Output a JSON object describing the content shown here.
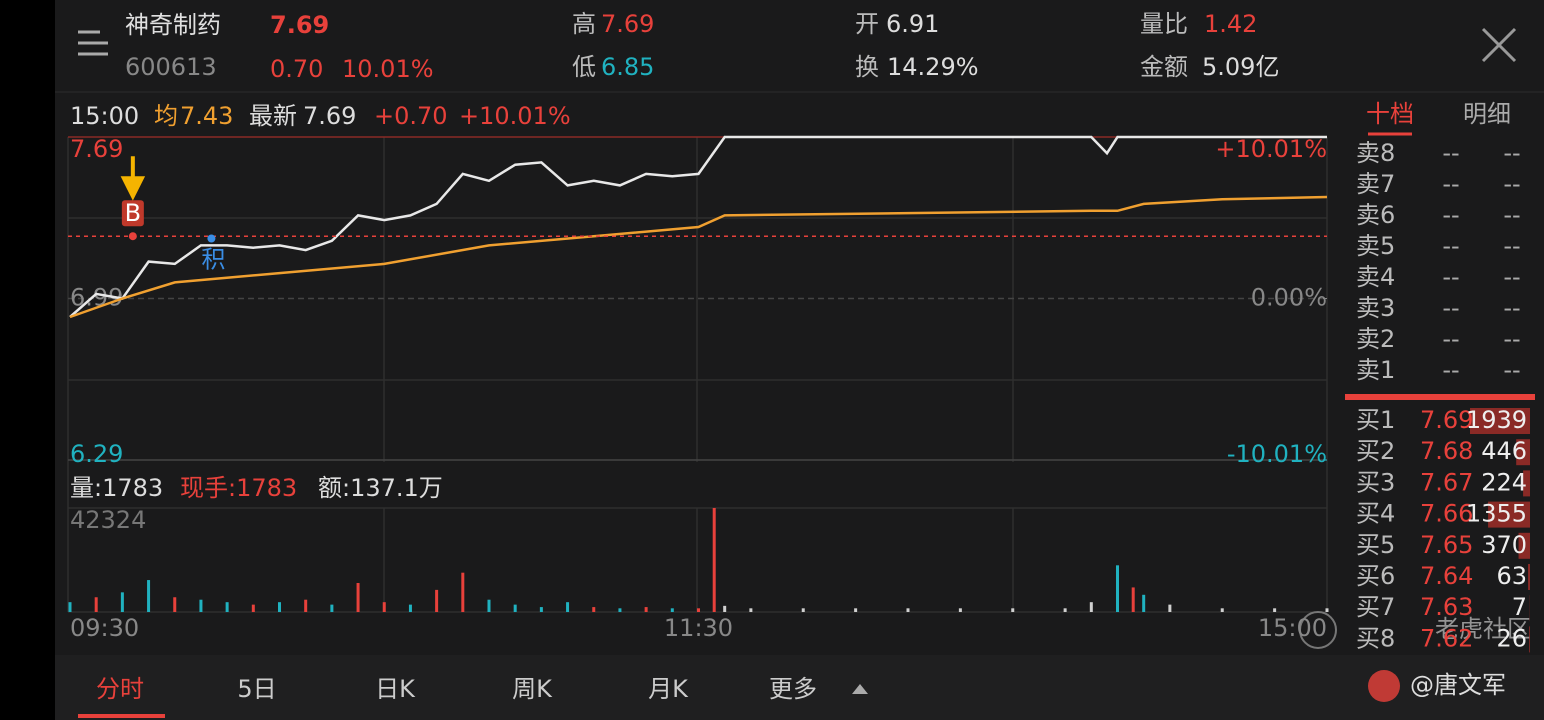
{
  "header": {
    "name": "神奇制药",
    "code": "600613",
    "price": "7.69",
    "change": "0.70",
    "change_pct": "10.01%",
    "high_label": "高",
    "high": "7.69",
    "low_label": "低",
    "low": "6.85",
    "open_label": "开",
    "open": "6.91",
    "turnover_label": "换",
    "turnover": "14.29%",
    "ratio_label": "量比",
    "ratio": "1.42",
    "amount_label": "金额",
    "amount": "5.09亿"
  },
  "info_bar": {
    "time": "15:00",
    "avg_label": "均",
    "avg": "7.43",
    "latest_label": "最新",
    "latest": "7.69",
    "change": "+0.70",
    "change_pct": "+10.01%"
  },
  "volume_bar": {
    "volume": "量:1783",
    "hand": "现手:1783",
    "amount": "额:137.1万"
  },
  "chart_data": [
    {
      "type": "line",
      "ylim": [
        6.29,
        7.69
      ],
      "yticks": [
        7.69,
        6.99,
        6.29
      ],
      "y2lim": [
        -10.01,
        10.01
      ],
      "y2ticks": [
        {
          "value": 10.01,
          "label": "+10.01%"
        },
        {
          "value": 0,
          "label": "0.00%"
        },
        {
          "value": -10.01,
          "label": "-10.01%"
        }
      ],
      "xlim": [
        0,
        240
      ],
      "series": [
        {
          "color": "#e8e8e8",
          "x": [
            0,
            5,
            10,
            15,
            20,
            25,
            30,
            35,
            40,
            45,
            50,
            55,
            60,
            65,
            70,
            75,
            80,
            85,
            90,
            95,
            100,
            105,
            110,
            115,
            120,
            125,
            195,
            198,
            200,
            240
          ],
          "values": [
            6.91,
            7.01,
            6.99,
            7.15,
            7.14,
            7.22,
            7.22,
            7.21,
            7.22,
            7.2,
            7.24,
            7.35,
            7.33,
            7.35,
            7.4,
            7.53,
            7.5,
            7.57,
            7.58,
            7.48,
            7.5,
            7.48,
            7.53,
            7.52,
            7.53,
            7.69,
            7.69,
            7.62,
            7.69,
            7.69
          ]
        },
        {
          "color": "#f0a030",
          "x": [
            0,
            10,
            20,
            40,
            60,
            80,
            100,
            120,
            125,
            160,
            195,
            200,
            205,
            220,
            240
          ],
          "values": [
            6.91,
            6.99,
            7.06,
            7.1,
            7.14,
            7.22,
            7.26,
            7.3,
            7.35,
            7.36,
            7.37,
            7.37,
            7.4,
            7.42,
            7.43
          ]
        }
      ],
      "annotations": [
        {
          "label": "B",
          "x": 12,
          "y": 7.26
        },
        {
          "label": "积",
          "x": 27,
          "y": 7.25
        }
      ]
    },
    {
      "type": "bar",
      "ylim": [
        0,
        42324
      ],
      "yticks": [
        42324
      ],
      "xlim": [
        0,
        240
      ],
      "xticks": [
        {
          "value": 0,
          "label": "09:30"
        },
        {
          "value": 120,
          "label": "11:30"
        },
        {
          "value": 240,
          "label": "15:00"
        }
      ],
      "x": [
        0,
        5,
        10,
        15,
        20,
        25,
        30,
        35,
        40,
        45,
        50,
        55,
        60,
        65,
        70,
        75,
        80,
        85,
        90,
        95,
        100,
        105,
        110,
        115,
        120,
        123,
        125,
        130,
        140,
        150,
        160,
        170,
        180,
        190,
        195,
        200,
        203,
        205,
        210,
        220,
        230,
        240
      ],
      "values": [
        4000,
        6000,
        8000,
        13000,
        6000,
        5000,
        4000,
        3000,
        4000,
        5000,
        3000,
        11800,
        4000,
        3000,
        9000,
        16000,
        5000,
        3000,
        2000,
        4000,
        2000,
        1500,
        2000,
        1500,
        1500,
        42324,
        2500,
        1500,
        1500,
        1500,
        1500,
        1500,
        1500,
        1500,
        4000,
        19000,
        10000,
        7000,
        3000,
        1500,
        1500,
        1500
      ],
      "colors": [
        "#20b2c0",
        "#e8413b",
        "#20b2c0",
        "#20b2c0",
        "#e8413b",
        "#20b2c0",
        "#20b2c0",
        "#e8413b",
        "#20b2c0",
        "#e8413b",
        "#20b2c0",
        "#e8413b",
        "#e8413b",
        "#20b2c0",
        "#e8413b",
        "#e8413b",
        "#20b2c0",
        "#20b2c0",
        "#20b2c0",
        "#20b2c0",
        "#e8413b",
        "#20b2c0",
        "#e8413b",
        "#20b2c0",
        "#e8413b",
        "#e8413b",
        "#d0d0d0",
        "#d0d0d0",
        "#d0d0d0",
        "#d0d0d0",
        "#d0d0d0",
        "#d0d0d0",
        "#d0d0d0",
        "#d0d0d0",
        "#d0d0d0",
        "#20b2c0",
        "#e8413b",
        "#20b2c0",
        "#d0d0d0",
        "#d0d0d0",
        "#d0d0d0",
        "#d0d0d0"
      ]
    }
  ],
  "order_book": {
    "tabs": [
      "十档",
      "明细"
    ],
    "sell": [
      {
        "label": "卖8",
        "price": "--",
        "volume": "--"
      },
      {
        "label": "卖7",
        "price": "--",
        "volume": "--"
      },
      {
        "label": "卖6",
        "price": "--",
        "volume": "--"
      },
      {
        "label": "卖5",
        "price": "--",
        "volume": "--"
      },
      {
        "label": "卖4",
        "price": "--",
        "volume": "--"
      },
      {
        "label": "卖3",
        "price": "--",
        "volume": "--"
      },
      {
        "label": "卖2",
        "price": "--",
        "volume": "--"
      },
      {
        "label": "卖1",
        "price": "--",
        "volume": "--"
      }
    ],
    "buy": [
      {
        "label": "买1",
        "price": "7.69",
        "volume": 1939
      },
      {
        "label": "买2",
        "price": "7.68",
        "volume": 446
      },
      {
        "label": "买3",
        "price": "7.67",
        "volume": 224
      },
      {
        "label": "买4",
        "price": "7.66",
        "volume": 1355
      },
      {
        "label": "买5",
        "price": "7.65",
        "volume": 370
      },
      {
        "label": "买6",
        "price": "7.64",
        "volume": 63
      },
      {
        "label": "买7",
        "price": "7.63",
        "volume": 7
      },
      {
        "label": "买8",
        "price": "7.62",
        "volume": 26
      }
    ]
  },
  "bottom_tabs": [
    "分时",
    "5日",
    "日K",
    "周K",
    "月K",
    "更多"
  ],
  "watermark": {
    "site": "老虎社区",
    "author": "@唐文军"
  }
}
